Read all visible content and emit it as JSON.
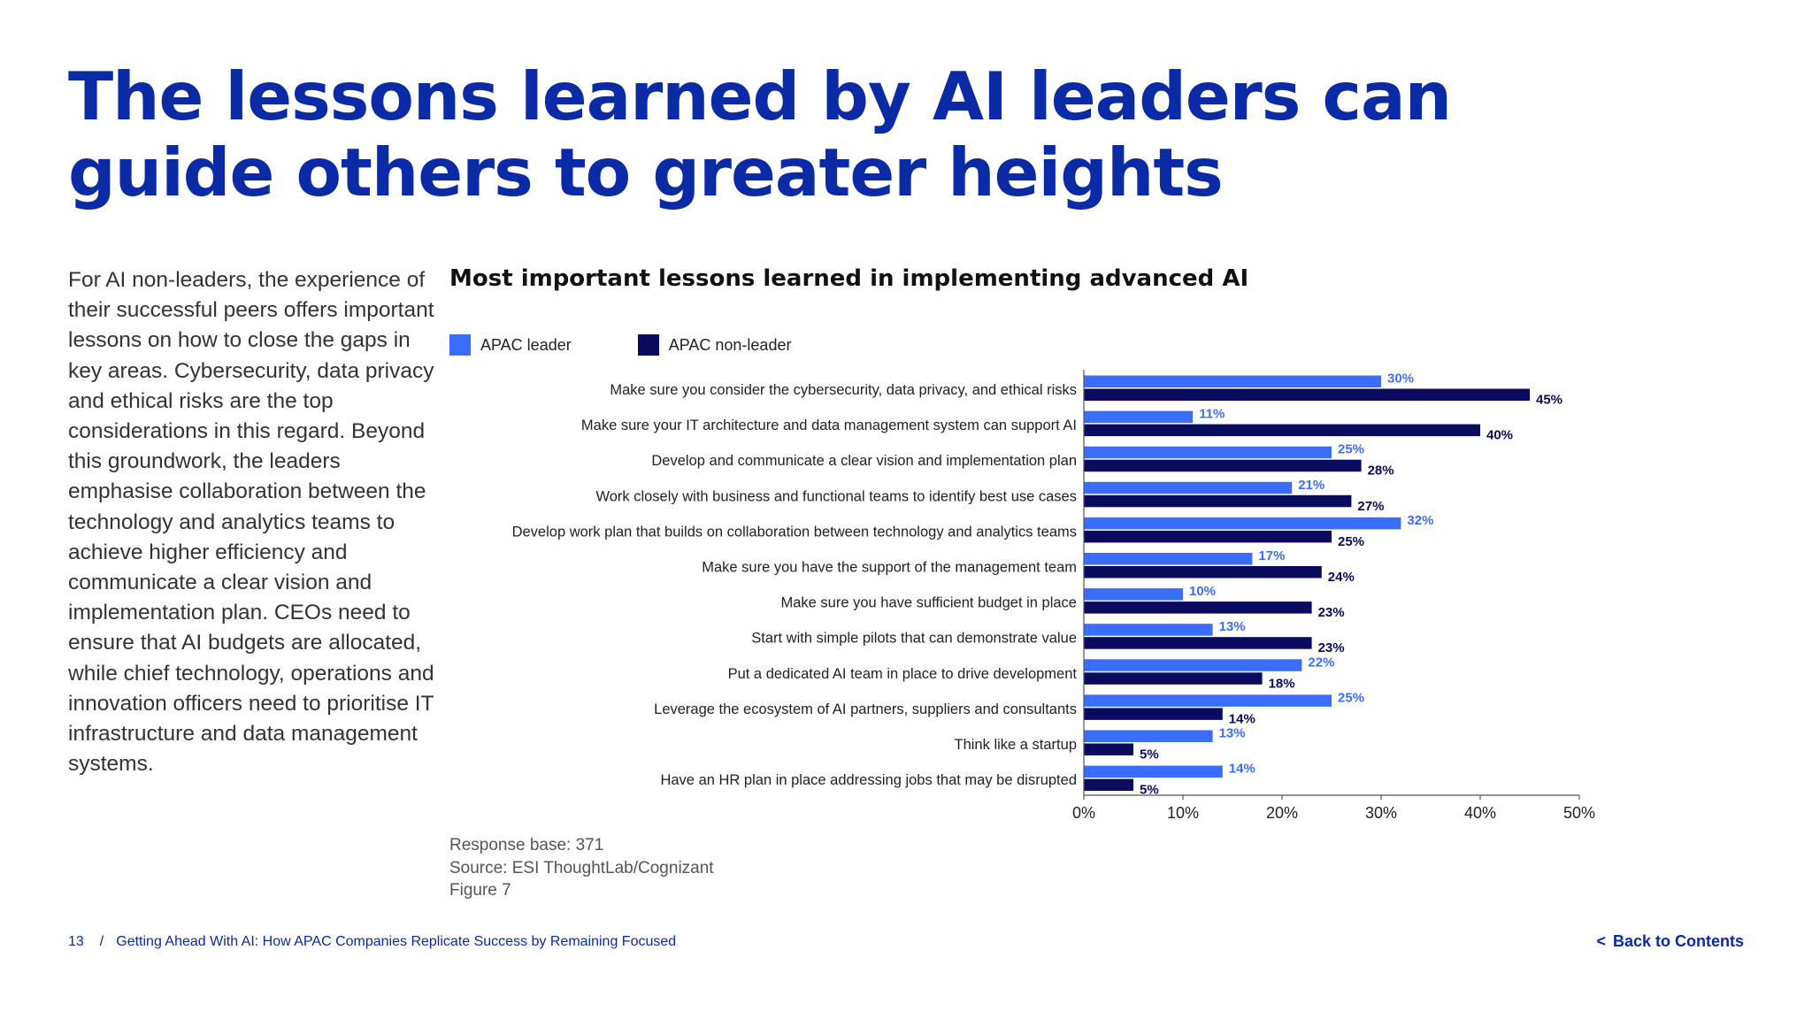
{
  "page": {
    "title": "The lessons learned by AI leaders can guide others to greater heights",
    "intro": "For AI non-leaders, the experience of their successful peers offers important lessons on how to close the gaps in key areas. Cybersecurity, data privacy and ethical risks are the top considerations in this regard. Beyond this groundwork, the leaders emphasise collaboration between the technology and analytics teams to achieve higher efficiency and communicate a clear vision and implementation plan. CEOs need to ensure that AI budgets are allocated, while chief technology, operations and innovation officers need to prioritise IT infrastructure and data management systems."
  },
  "colors": {
    "accent": "#0a2aa6",
    "leader": "#3a6dfb",
    "non_leader": "#0a0a5e"
  },
  "chart_data": {
    "type": "bar",
    "orientation": "horizontal",
    "title": "Most important lessons learned in implementing advanced AI",
    "categories": [
      "Make sure you consider the cybersecurity, data privacy, and ethical risks",
      "Make sure your IT architecture and data management system can support AI",
      "Develop and communicate a clear vision and implementation plan",
      "Work closely with business and functional teams to identify best use cases",
      "Develop work plan that builds on collaboration between technology and analytics teams",
      "Make sure you have the support of the management team",
      "Make sure you have sufficient budget in place",
      "Start with simple pilots that can demonstrate value",
      "Put a dedicated AI team in place to drive development",
      "Leverage the ecosystem of AI partners, suppliers and consultants",
      "Think like a startup",
      "Have an HR plan in place addressing jobs that may be disrupted"
    ],
    "series": [
      {
        "name": "APAC leader",
        "color": "#3a6dfb",
        "values": [
          30,
          11,
          25,
          21,
          32,
          17,
          10,
          13,
          22,
          25,
          13,
          14
        ]
      },
      {
        "name": "APAC non-leader",
        "color": "#0a0a5e",
        "values": [
          45,
          40,
          28,
          27,
          25,
          24,
          23,
          23,
          18,
          14,
          5,
          5
        ]
      }
    ],
    "xlim": [
      0,
      50
    ],
    "xticks": [
      "0%",
      "10%",
      "20%",
      "30%",
      "40%",
      "50%"
    ],
    "value_suffix": "%",
    "legend_position": "top-left",
    "grid": false
  },
  "notes": {
    "response_base": "Response base: 371",
    "source": "Source: ESI ThoughtLab/Cognizant",
    "figure": "Figure 7"
  },
  "footer": {
    "page_number": "13",
    "separator": "/",
    "doc_title": "Getting Ahead With AI: How APAC Companies Replicate Success by Remaining Focused",
    "back_chevron": "<",
    "back_link": "Back to Contents"
  }
}
